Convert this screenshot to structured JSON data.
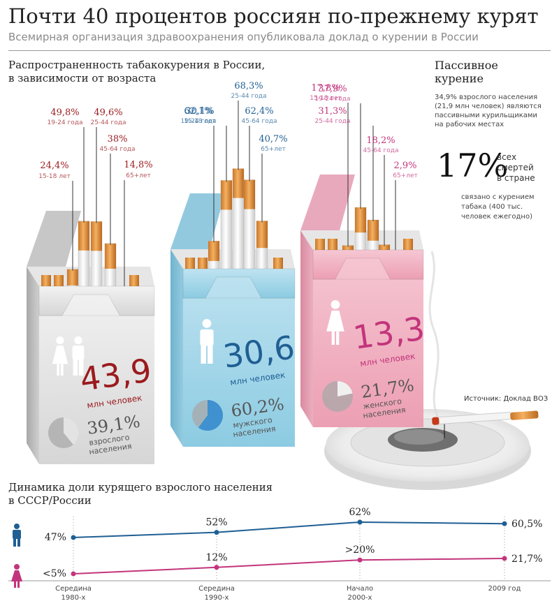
{
  "header": {
    "title": "Почти 40 процентов россиян по-прежнему курят",
    "subtitle": "Всемирная организация здравоохранения опубликовала доклад о курении в России"
  },
  "prevalence_title": [
    "Распространенность табакокурения в России,",
    "в зависимости от возраста"
  ],
  "passive": {
    "title": [
      "Пассивное",
      "курение"
    ],
    "text": [
      "34,9% взрослого населения",
      "(21,9 млн человек) являются",
      "пассивными курильщиками",
      "на рабочих местах"
    ],
    "big_value": "17%",
    "deaths_text": [
      "всех",
      "смертей",
      "в стране"
    ],
    "deaths_note": [
      "связано с курением",
      "табака (400 тыс.",
      "человек ежегодно)"
    ]
  },
  "source": "Источник: Доклад ВОЗ",
  "colors": {
    "all": "#9b1a1e",
    "men": "#1f5f93",
    "women": "#c2357c",
    "dyn_men": "#1f5f93",
    "dyn_women": "#c2357c"
  },
  "chart_data": [
    {
      "type": "bar",
      "name": "",
      "categories": [
        "15-18 лет",
        "19-24 года",
        "25-44 года",
        "45-64 года",
        "65+лет"
      ],
      "values": [
        24.4,
        49.8,
        49.6,
        38,
        14.8
      ],
      "value_labels": [
        "24,4%",
        "49,8%",
        "49,6%",
        "38%",
        "14,8%"
      ],
      "total": "43,9",
      "total_unit": "млн человек",
      "share": "39,1%",
      "share_value": 39.1,
      "share_label": [
        "взрослого",
        "населения"
      ]
    },
    {
      "type": "bar",
      "name": "",
      "categories": [
        "15-18 лет",
        "19-24 года",
        "25-44 года",
        "45-64 года",
        "65+лет"
      ],
      "values": [
        30.1,
        62.1,
        68.3,
        62.4,
        40.7
      ],
      "value_labels": [
        "30,1%",
        "62,1%",
        "68,3%",
        "62,4%",
        "40,7%"
      ],
      "total": "30,6",
      "total_unit": "млн человек",
      "share": "60,2%",
      "share_value": 60.2,
      "share_label": [
        "мужского",
        "населения"
      ]
    },
    {
      "type": "bar",
      "name": "",
      "categories": [
        "15-18 лет",
        "19-24 года",
        "25-44 года",
        "45-64 года",
        "65+лет"
      ],
      "values": [
        17.8,
        37.9,
        31.3,
        18.2,
        2.9
      ],
      "value_labels": [
        "17,8%",
        "37,9%",
        "31,3%",
        "18,2%",
        "2,9%"
      ],
      "total": "13,3",
      "total_unit": "млн человек",
      "share": "21,7%",
      "share_value": 21.7,
      "share_label": [
        "женского",
        "населения"
      ]
    },
    {
      "type": "line",
      "title": [
        "Динамика доли курящего взрослого населения",
        "в СССР/России"
      ],
      "categories": [
        [
          "Середина",
          "1980-х"
        ],
        [
          "Середина",
          "1990-х"
        ],
        [
          "Начало",
          "2000-х"
        ],
        [
          "2009 год"
        ]
      ],
      "series": [
        {
          "values": [
            47,
            52,
            62,
            60.5
          ],
          "labels": [
            "47%",
            "52%",
            "62%",
            "60,5%"
          ]
        },
        {
          "values": [
            5,
            12,
            20,
            21.7
          ],
          "labels": [
            "<5%",
            "12%",
            ">20%",
            "21,7%"
          ]
        }
      ]
    }
  ]
}
